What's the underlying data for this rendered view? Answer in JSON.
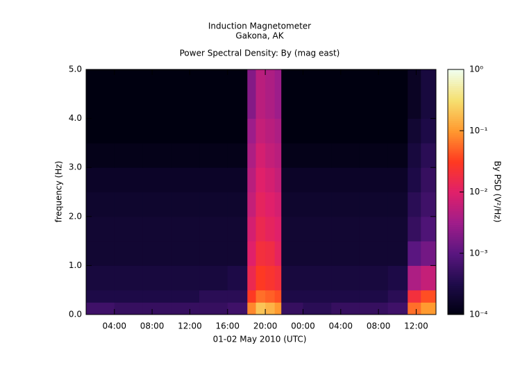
{
  "chart_data": {
    "type": "spectrogram",
    "title": "Induction Magnetometer",
    "subtitle": "Gakona, AK",
    "plot_title": "Power Spectral Density: By (mag east)",
    "xlabel": "01-02 May 2010 (UTC)",
    "ylabel": "frequency (Hz)",
    "colorbar_label": "By PSD (V²/Hz)",
    "xlim": [
      1.0,
      38.1
    ],
    "xticks": [
      {
        "value": 4,
        "label": "04:00"
      },
      {
        "value": 8,
        "label": "08:00"
      },
      {
        "value": 12,
        "label": "12:00"
      },
      {
        "value": 16,
        "label": "16:00"
      },
      {
        "value": 20,
        "label": "20:00"
      },
      {
        "value": 24,
        "label": "00:00"
      },
      {
        "value": 28,
        "label": "04:00"
      },
      {
        "value": 32,
        "label": "08:00"
      },
      {
        "value": 36,
        "label": "12:00"
      }
    ],
    "ylim": [
      0,
      5
    ],
    "yticks": [
      {
        "value": 0,
        "label": "0.0"
      },
      {
        "value": 1,
        "label": "1.0"
      },
      {
        "value": 2,
        "label": "2.0"
      },
      {
        "value": 3,
        "label": "3.0"
      },
      {
        "value": 4,
        "label": "4.0"
      },
      {
        "value": 5,
        "label": "5.0"
      }
    ],
    "clim": [
      0.0001,
      1
    ],
    "clog": true,
    "cticks": [
      {
        "value": 0.0001,
        "label": "10⁻⁴"
      },
      {
        "value": 0.001,
        "label": "10⁻³"
      },
      {
        "value": 0.01,
        "label": "10⁻²"
      },
      {
        "value": 0.1,
        "label": "10⁻¹"
      },
      {
        "value": 1,
        "label": "10⁰"
      }
    ],
    "colorscale": [
      "#000010",
      "#1e0b4a",
      "#5a1680",
      "#a01d8a",
      "#e0206a",
      "#ff3a20",
      "#ff9a30",
      "#f6e070",
      "#f0fff0"
    ],
    "xbins": [
      1,
      4,
      7,
      10,
      13,
      16,
      18.1,
      19,
      20,
      21,
      21.7,
      24,
      27,
      30,
      33,
      35.1,
      36.5,
      38.1
    ],
    "ybins": [
      0,
      0.25,
      0.5,
      1,
      1.5,
      2,
      2.5,
      3,
      3.5,
      4,
      5
    ],
    "z": [
      [
        0.0006,
        0.0005,
        0.0005,
        0.0005,
        0.0005,
        0.0006,
        0.08,
        0.2,
        0.15,
        0.1,
        0.0005,
        0.0004,
        0.0005,
        0.0005,
        0.0006,
        0.06,
        0.1
      ],
      [
        0.0003,
        0.0003,
        0.0003,
        0.0003,
        0.0004,
        0.0004,
        0.03,
        0.06,
        0.05,
        0.04,
        0.0003,
        0.0003,
        0.0003,
        0.0003,
        0.0004,
        0.02,
        0.04
      ],
      [
        0.00025,
        0.00025,
        0.00025,
        0.00025,
        0.00025,
        0.0003,
        0.015,
        0.03,
        0.025,
        0.02,
        0.00025,
        0.00025,
        0.00025,
        0.00025,
        0.0003,
        0.004,
        0.006
      ],
      [
        0.0002,
        0.0002,
        0.0002,
        0.0002,
        0.0002,
        0.0002,
        0.01,
        0.02,
        0.018,
        0.012,
        0.0002,
        0.0002,
        0.0002,
        0.0002,
        0.0002,
        0.001,
        0.0015
      ],
      [
        0.0002,
        0.0002,
        0.0002,
        0.0002,
        0.0002,
        0.0002,
        0.008,
        0.015,
        0.012,
        0.01,
        0.0002,
        0.0002,
        0.0002,
        0.0002,
        0.0002,
        0.0005,
        0.0008
      ],
      [
        0.00018,
        0.00018,
        0.00018,
        0.00018,
        0.00018,
        0.00018,
        0.006,
        0.012,
        0.01,
        0.008,
        0.00018,
        0.00018,
        0.00018,
        0.00018,
        0.00018,
        0.0004,
        0.0006
      ],
      [
        0.00016,
        0.00016,
        0.00016,
        0.00016,
        0.00016,
        0.00016,
        0.005,
        0.01,
        0.008,
        0.006,
        0.00016,
        0.00016,
        0.00016,
        0.00016,
        0.00016,
        0.0003,
        0.0005
      ],
      [
        0.00012,
        0.00012,
        0.00012,
        0.00012,
        0.00012,
        0.00012,
        0.004,
        0.008,
        0.006,
        0.005,
        0.00012,
        0.00012,
        0.00012,
        0.00012,
        0.00012,
        0.00025,
        0.0004
      ],
      [
        0.0001,
        0.0001,
        0.0001,
        0.0001,
        0.0001,
        0.0001,
        0.003,
        0.006,
        0.005,
        0.004,
        0.0001,
        0.0001,
        0.0001,
        0.0001,
        0.0001,
        0.0002,
        0.0003
      ],
      [
        0.0001,
        0.0001,
        0.0001,
        0.0001,
        0.0001,
        0.0001,
        0.002,
        0.005,
        0.004,
        0.003,
        0.0001,
        0.0001,
        0.0001,
        0.0001,
        0.0001,
        0.00015,
        0.00025
      ]
    ]
  }
}
